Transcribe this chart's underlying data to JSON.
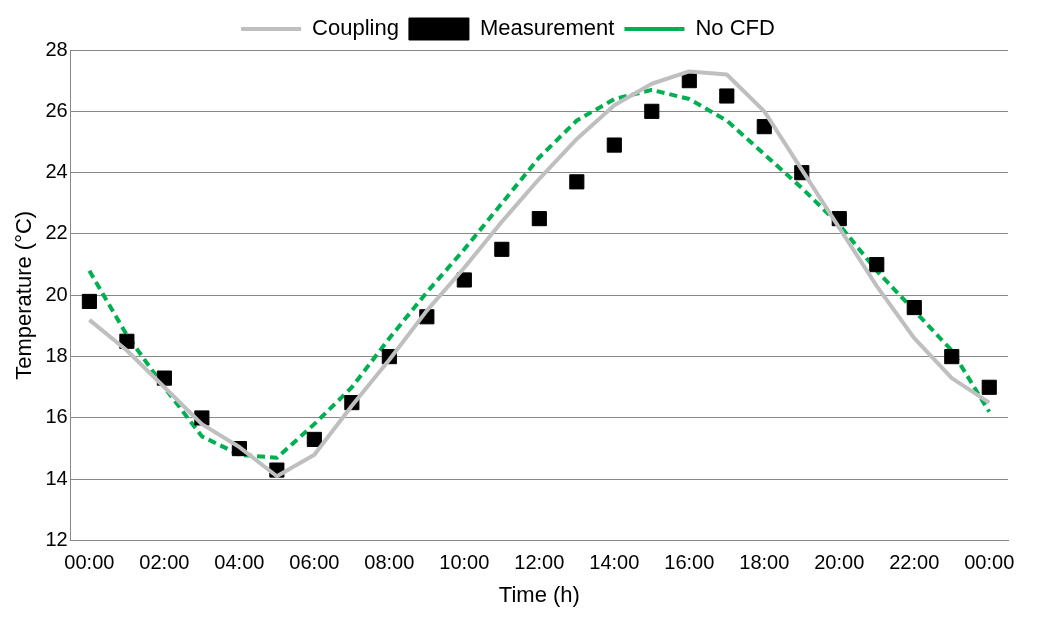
{
  "chart_data": {
    "type": "line",
    "xlabel": "Time (h)",
    "ylabel": "Temperature (°C)",
    "x": [
      0,
      1,
      2,
      3,
      4,
      5,
      6,
      7,
      8,
      9,
      10,
      11,
      12,
      13,
      14,
      15,
      16,
      17,
      18,
      19,
      20,
      21,
      22,
      23,
      24
    ],
    "xlim": [
      -0.5,
      24.5
    ],
    "xticks": [
      {
        "value": 0,
        "label": "00:00"
      },
      {
        "value": 2,
        "label": "02:00"
      },
      {
        "value": 4,
        "label": "04:00"
      },
      {
        "value": 6,
        "label": "06:00"
      },
      {
        "value": 8,
        "label": "08:00"
      },
      {
        "value": 10,
        "label": "10:00"
      },
      {
        "value": 12,
        "label": "12:00"
      },
      {
        "value": 14,
        "label": "14:00"
      },
      {
        "value": 16,
        "label": "16:00"
      },
      {
        "value": 18,
        "label": "18:00"
      },
      {
        "value": 20,
        "label": "20:00"
      },
      {
        "value": 22,
        "label": "22:00"
      },
      {
        "value": 24,
        "label": "00:00"
      }
    ],
    "ylim": [
      12,
      28
    ],
    "yticks": [
      12,
      14,
      16,
      18,
      20,
      22,
      24,
      26,
      28
    ],
    "grid": "y",
    "legend": "top",
    "series": [
      {
        "name": "Coupling",
        "color": "#bfbfbf",
        "type": "line",
        "marker": "none",
        "line_style": "solid",
        "values": [
          19.2,
          18.2,
          17.0,
          15.8,
          15.05,
          14.1,
          14.8,
          16.4,
          17.9,
          19.5,
          20.9,
          22.4,
          23.8,
          25.1,
          26.2,
          26.9,
          27.3,
          27.2,
          26.0,
          24.1,
          22.2,
          20.3,
          18.6,
          17.3,
          16.5
        ]
      },
      {
        "name": "Measurement",
        "color": "#000000",
        "type": "scatter",
        "marker": "square",
        "values": [
          19.8,
          18.5,
          17.3,
          16.0,
          15.0,
          14.3,
          15.3,
          16.5,
          18.0,
          19.3,
          20.5,
          21.5,
          22.5,
          23.7,
          24.9,
          26.0,
          27.0,
          26.5,
          25.5,
          24.0,
          22.5,
          21.0,
          19.6,
          18.0,
          17.0
        ]
      },
      {
        "name": "No CFD",
        "color": "#00b050",
        "type": "line",
        "marker": "none",
        "line_style": "dashed",
        "values": [
          20.8,
          18.7,
          17.0,
          15.4,
          14.8,
          14.7,
          15.8,
          17.0,
          18.6,
          20.1,
          21.5,
          23.0,
          24.5,
          25.7,
          26.4,
          26.7,
          26.4,
          25.7,
          24.6,
          23.5,
          22.3,
          20.8,
          19.5,
          18.2,
          16.2
        ]
      }
    ]
  }
}
